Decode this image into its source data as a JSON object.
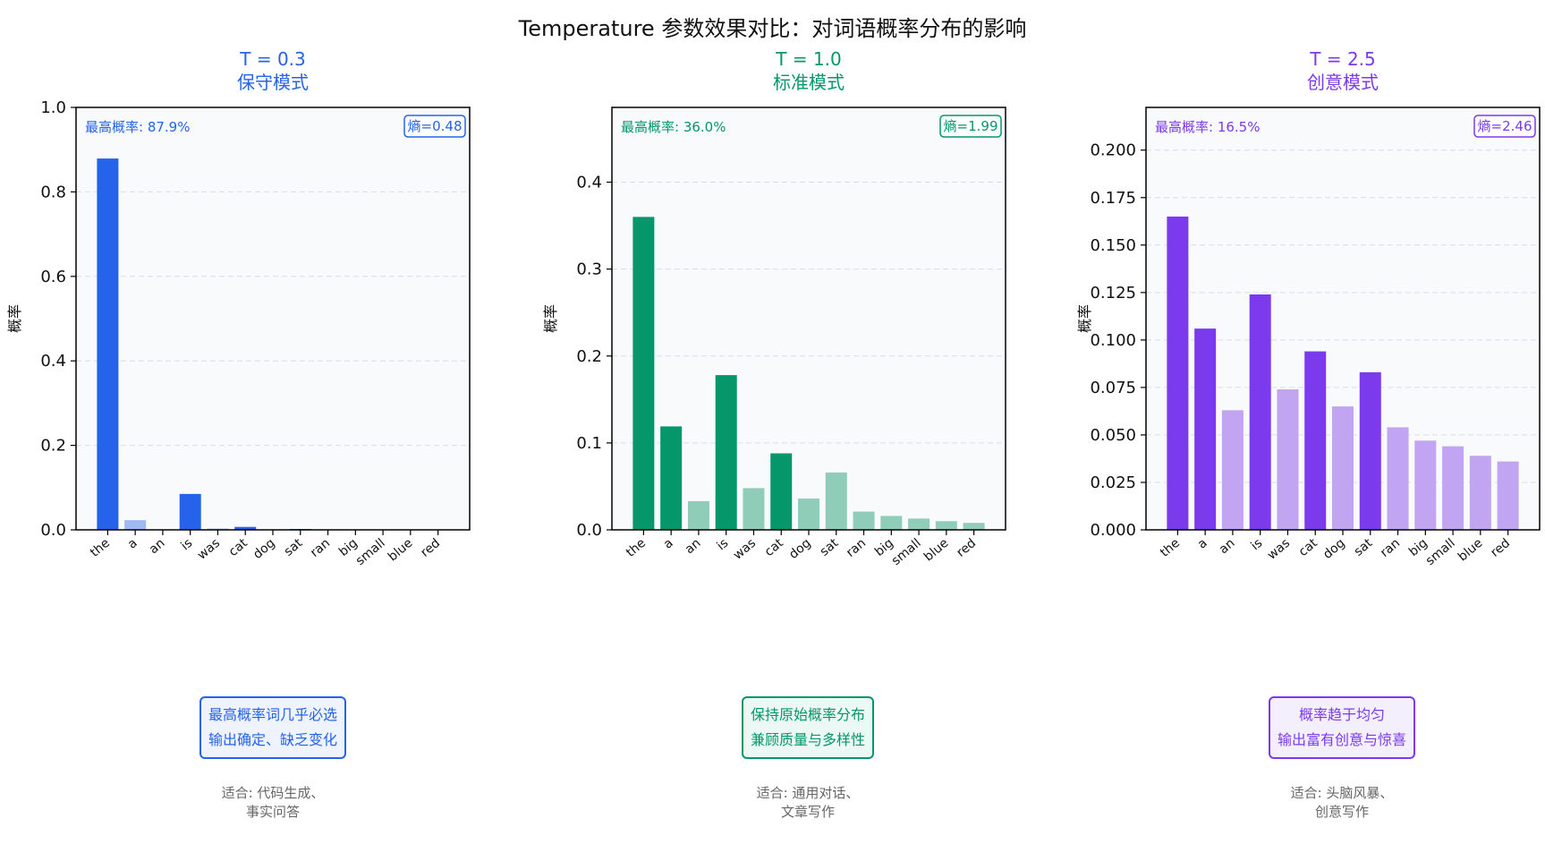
{
  "figure_title": "Temperature 参数效果对比：对词语概率分布的影响",
  "colors": {
    "panel_bg": "#f8fafc",
    "grid": "#d9dde3"
  },
  "panels": [
    {
      "t_label": "T = 0.3",
      "mode_label": "保守模式",
      "color": "#2563eb",
      "light_color": "#9fb9f4",
      "callout_bg": "#eef3fe",
      "top_prob_text": "最高概率: 87.9%",
      "entropy_text": "熵=0.48",
      "ylabel": "概率",
      "callout_lines": [
        "最高概率词几乎必选",
        "输出确定、缺乏变化"
      ],
      "usecase_lines": [
        "适合: 代码生成、",
        "事实问答"
      ]
    },
    {
      "t_label": "T = 1.0",
      "mode_label": "标准模式",
      "color": "#059669",
      "light_color": "#8fcdb8",
      "callout_bg": "#ecf8f3",
      "top_prob_text": "最高概率: 36.0%",
      "entropy_text": "熵=1.99",
      "ylabel": "概率",
      "callout_lines": [
        "保持原始概率分布",
        "兼顾质量与多样性"
      ],
      "usecase_lines": [
        "适合: 通用对话、",
        "文章写作"
      ]
    },
    {
      "t_label": "T = 2.5",
      "mode_label": "创意模式",
      "color": "#7c3aed",
      "light_color": "#c2a5f2",
      "callout_bg": "#f4effd",
      "top_prob_text": "最高概率: 16.5%",
      "entropy_text": "熵=2.46",
      "ylabel": "概率",
      "callout_lines": [
        "概率趋于均匀",
        "输出富有创意与惊喜"
      ],
      "usecase_lines": [
        "适合: 头脑风暴、",
        "创意写作"
      ]
    }
  ],
  "chart_data": [
    {
      "type": "bar",
      "title": "T = 0.3 保守模式",
      "ylabel": "概率",
      "categories": [
        "the",
        "a",
        "an",
        "is",
        "was",
        "cat",
        "dog",
        "sat",
        "ran",
        "big",
        "small",
        "blue",
        "red"
      ],
      "values": [
        0.879,
        0.023,
        0.001,
        0.085,
        0.003,
        0.007,
        0.001,
        0.002,
        0.0003,
        0.0003,
        0.0002,
        0.0001,
        0.0001
      ],
      "highlighted": [
        true,
        false,
        false,
        true,
        false,
        true,
        false,
        true,
        false,
        false,
        false,
        false,
        false
      ],
      "ylim": [
        0,
        1.0
      ],
      "yticks": [
        0.0,
        0.2,
        0.4,
        0.6,
        0.8,
        1.0
      ],
      "ytick_labels": [
        "0.0",
        "0.2",
        "0.4",
        "0.6",
        "0.8",
        "1.0"
      ],
      "grid": true
    },
    {
      "type": "bar",
      "title": "T = 1.0 标准模式",
      "ylabel": "概率",
      "categories": [
        "the",
        "a",
        "an",
        "is",
        "was",
        "cat",
        "dog",
        "sat",
        "ran",
        "big",
        "small",
        "blue",
        "red"
      ],
      "values": [
        0.36,
        0.119,
        0.033,
        0.178,
        0.048,
        0.088,
        0.036,
        0.066,
        0.021,
        0.016,
        0.013,
        0.01,
        0.008
      ],
      "highlighted": [
        true,
        true,
        false,
        true,
        false,
        true,
        false,
        false,
        false,
        false,
        false,
        false,
        false
      ],
      "ylim": [
        0,
        0.486
      ],
      "yticks": [
        0.0,
        0.1,
        0.2,
        0.3,
        0.4
      ],
      "ytick_labels": [
        "0.0",
        "0.1",
        "0.2",
        "0.3",
        "0.4"
      ],
      "grid": true
    },
    {
      "type": "bar",
      "title": "T = 2.5 创意模式",
      "ylabel": "概率",
      "categories": [
        "the",
        "a",
        "an",
        "is",
        "was",
        "cat",
        "dog",
        "sat",
        "ran",
        "big",
        "small",
        "blue",
        "red"
      ],
      "values": [
        0.165,
        0.106,
        0.063,
        0.124,
        0.074,
        0.094,
        0.065,
        0.083,
        0.054,
        0.047,
        0.044,
        0.039,
        0.036
      ],
      "highlighted": [
        true,
        true,
        false,
        true,
        false,
        true,
        false,
        true,
        false,
        false,
        false,
        false,
        false
      ],
      "ylim": [
        0,
        0.2225
      ],
      "yticks": [
        0.0,
        0.025,
        0.05,
        0.075,
        0.1,
        0.125,
        0.15,
        0.175,
        0.2
      ],
      "ytick_labels": [
        "0.000",
        "0.025",
        "0.050",
        "0.075",
        "0.100",
        "0.125",
        "0.150",
        "0.175",
        "0.200"
      ],
      "grid": true
    }
  ]
}
